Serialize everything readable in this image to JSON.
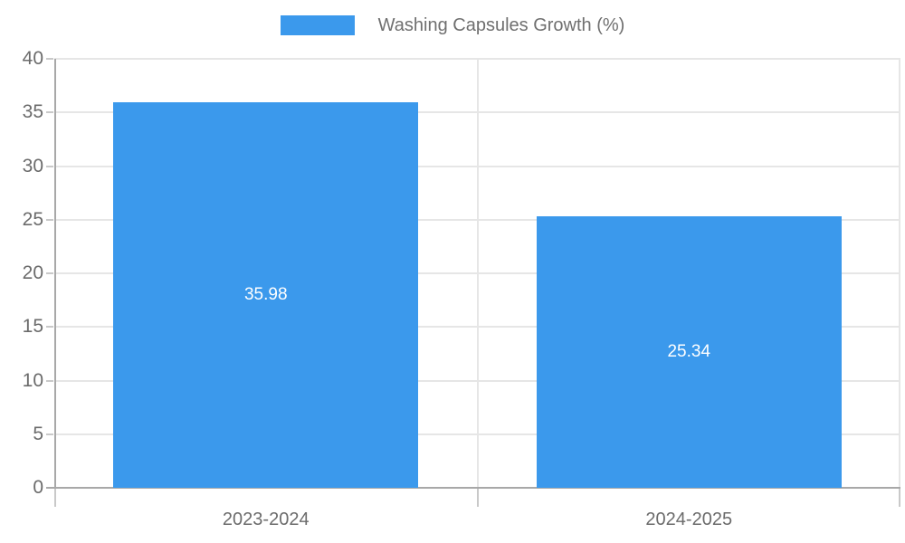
{
  "chart_data": {
    "type": "bar",
    "title": "",
    "legend": {
      "label": "Washing Capsules Growth (%)",
      "position": "top"
    },
    "categories": [
      "2023-2024",
      "2024-2025"
    ],
    "values": [
      35.98,
      25.34
    ],
    "value_labels": [
      "35.98",
      "25.34"
    ],
    "xlabel": "",
    "ylabel": "",
    "ylim": [
      0,
      40
    ],
    "yticks": [
      0,
      5,
      10,
      15,
      20,
      25,
      30,
      35,
      40
    ],
    "grid": true
  },
  "colors": {
    "bar": "#3B99EC",
    "bar_value_label": "#FFFFFF",
    "axis_text": "#6B6B6B",
    "legend_text": "#6F6F6F",
    "gridline": "#E6E6E6",
    "axis_line": "#A8A8A8",
    "tick_mark": "#C9C9C9",
    "background": "#FFFFFF"
  }
}
